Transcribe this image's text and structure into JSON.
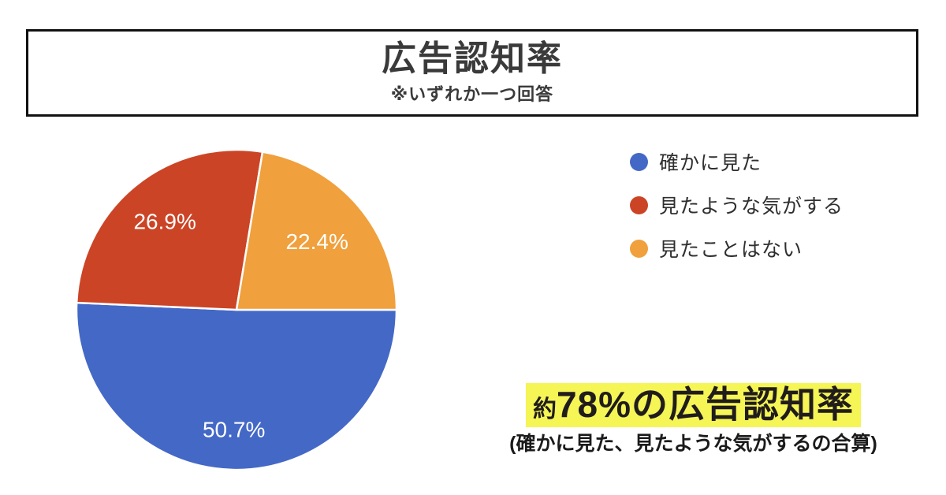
{
  "header": {
    "title": "広告認知率",
    "subtitle": "※いずれか一つ回答"
  },
  "chart_data": {
    "type": "pie",
    "title": "広告認知率",
    "start_angle_deg_clockwise_from_top": 90,
    "direction": "clockwise",
    "legend_position": "right",
    "data_label_color": "#ffffff",
    "slice_border_color": "#ffffff",
    "slices": [
      {
        "label": "確かに見た",
        "value": 50.7,
        "data_label": "50.7%",
        "color": "#4468C6"
      },
      {
        "label": "見たような気がする",
        "value": 26.9,
        "data_label": "26.9%",
        "color": "#CC4426"
      },
      {
        "label": "見たことはない",
        "value": 22.4,
        "data_label": "22.4%",
        "color": "#F0A03C"
      }
    ]
  },
  "annotation": {
    "highlight_prefix": "約",
    "highlight_main": "78%の広告認知率",
    "highlight_color": "#F5F556",
    "subtext": "(確かに見た、見たような気がするの合算)"
  }
}
